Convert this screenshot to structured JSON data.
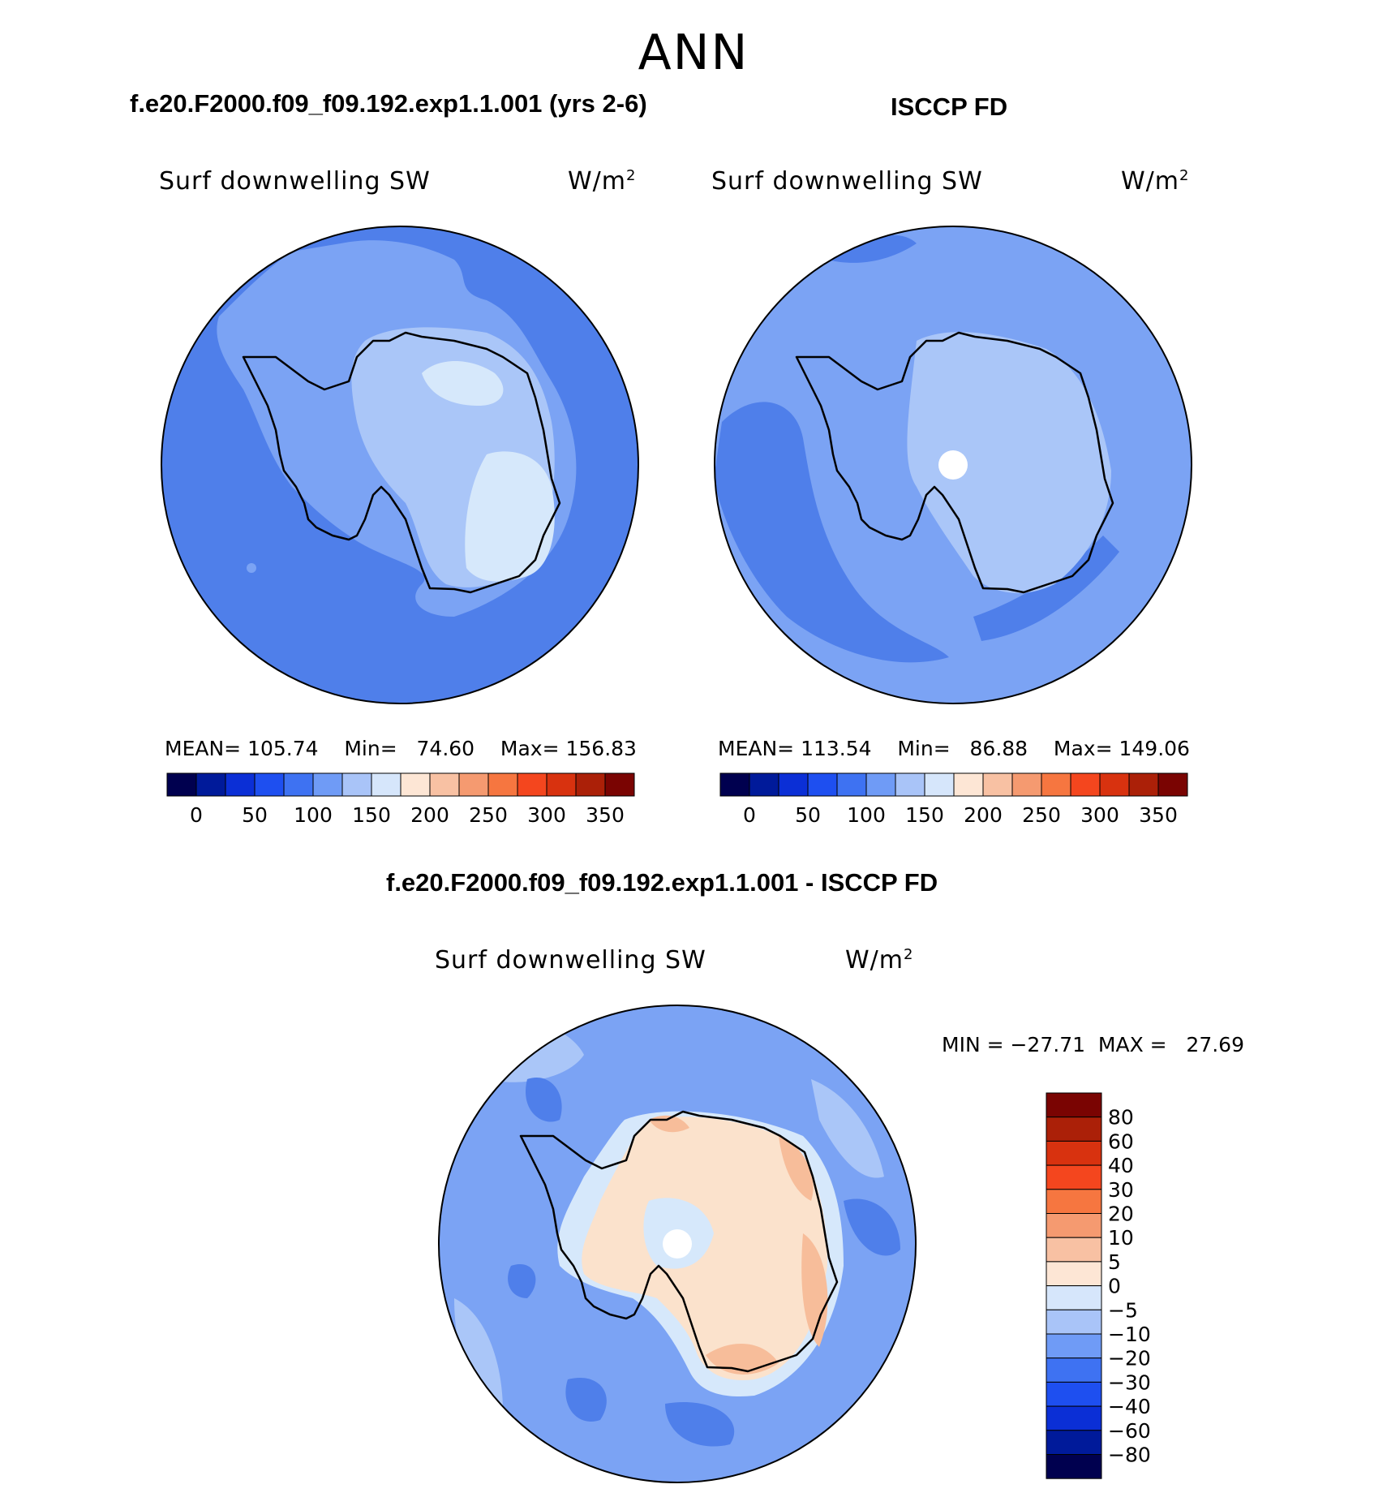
{
  "season": "ANN",
  "panel1": {
    "case_title": "f.e20.F2000.f09_f09.192.exp1.1.001 (yrs 2-6)",
    "variable": "Surf downwelling SW",
    "units": "W/m",
    "units_sup": "2",
    "mean_label": "MEAN=",
    "mean": "105.74",
    "min_label": "Min=",
    "min": "74.60",
    "max_label": "Max=",
    "max": "156.83"
  },
  "panel2": {
    "case_title": "ISCCP FD",
    "variable": "Surf downwelling SW",
    "units": "W/m",
    "units_sup": "2",
    "mean_label": "MEAN=",
    "mean": "113.54",
    "min_label": "Min=",
    "min": "86.88",
    "max_label": "Max=",
    "max": "149.06"
  },
  "panel3": {
    "case_title": "f.e20.F2000.f09_f09.192.exp1.1.001 - ISCCP FD",
    "variable": "Surf downwelling SW",
    "units": "W/m",
    "units_sup": "2",
    "minmax_text": "MIN = −27.71  MAX =   27.69"
  },
  "chart_data": [
    {
      "type": "heatmap",
      "title": "f.e20.F2000.f09_f09.192.exp1.1.001 (yrs 2-6)",
      "projection": "south polar stereographic",
      "variable": "Surf downwelling SW",
      "units": "W/m2",
      "mean": 105.74,
      "min": 74.6,
      "max": 156.83,
      "colorbar_levels": [
        0,
        25,
        50,
        75,
        100,
        125,
        150,
        175,
        200,
        225,
        250,
        275,
        300,
        325,
        350
      ],
      "colorbar_tick_labels": [
        "0",
        "50",
        "100",
        "150",
        "200",
        "250",
        "300",
        "350"
      ]
    },
    {
      "type": "heatmap",
      "title": "ISCCP FD",
      "projection": "south polar stereographic",
      "variable": "Surf downwelling SW",
      "units": "W/m2",
      "mean": 113.54,
      "min": 86.88,
      "max": 149.06,
      "colorbar_levels": [
        0,
        25,
        50,
        75,
        100,
        125,
        150,
        175,
        200,
        225,
        250,
        275,
        300,
        325,
        350
      ],
      "colorbar_tick_labels": [
        "0",
        "50",
        "100",
        "150",
        "200",
        "250",
        "300",
        "350"
      ]
    },
    {
      "type": "heatmap",
      "title": "f.e20.F2000.f09_f09.192.exp1.1.001 - ISCCP FD",
      "projection": "south polar stereographic",
      "variable": "Surf downwelling SW",
      "units": "W/m2",
      "min": -27.71,
      "max": 27.69,
      "colorbar_levels": [
        -80,
        -60,
        -40,
        -30,
        -20,
        -10,
        -5,
        0,
        5,
        10,
        20,
        30,
        40,
        60,
        80
      ],
      "colorbar_tick_labels": [
        "80",
        "60",
        "40",
        "30",
        "20",
        "10",
        "5",
        "0",
        "−5",
        "−10",
        "−20",
        "−30",
        "−40",
        "−60",
        "−80"
      ]
    }
  ],
  "palette": [
    "#00004f",
    "#001a9a",
    "#0b2fd6",
    "#1e4ff0",
    "#3e72f2",
    "#6f9bf6",
    "#a9c4f8",
    "#d6e6fb",
    "#fde6d5",
    "#f8c1a3",
    "#f59a70",
    "#f67640",
    "#f4461e",
    "#d8320f",
    "#ab2008",
    "#7a0402"
  ],
  "map_colors": {
    "deep": "#4f7fea",
    "mid": "#7ba3f4",
    "light": "#aac6f8",
    "pale": "#d6e8fb",
    "warm1": "#fbe2cc",
    "warm2": "#f7bd9a",
    "warm3": "#f39a72",
    "hole": "#ffffff"
  }
}
